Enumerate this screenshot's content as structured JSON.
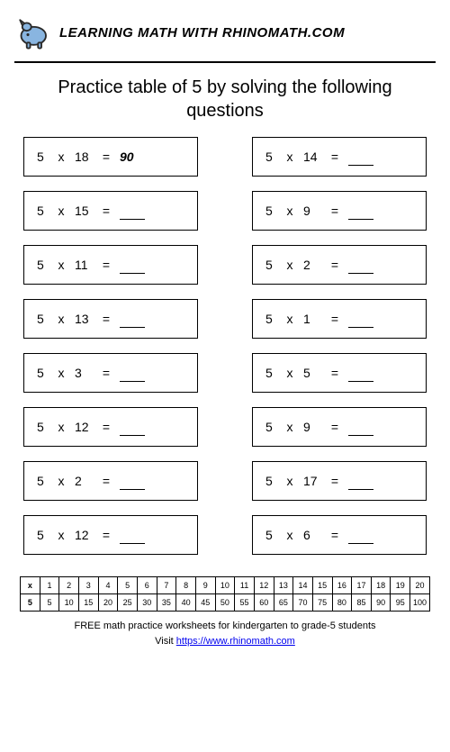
{
  "header": {
    "site_title": "LEARNING MATH WITH RHINOMATH.COM",
    "logo_colors": {
      "body": "#89b5e0",
      "outline": "#2a2a2a",
      "horn": "#d9d9d9"
    }
  },
  "instruction": "Practice table of 5 by solving the following questions",
  "base": 5,
  "op_symbol": "x",
  "eq_symbol": "=",
  "questions": {
    "left": [
      {
        "n2": 18,
        "answer": 90
      },
      {
        "n2": 15,
        "answer": null
      },
      {
        "n2": 11,
        "answer": null
      },
      {
        "n2": 13,
        "answer": null
      },
      {
        "n2": 3,
        "answer": null
      },
      {
        "n2": 12,
        "answer": null
      },
      {
        "n2": 2,
        "answer": null
      },
      {
        "n2": 12,
        "answer": null
      }
    ],
    "right": [
      {
        "n2": 14,
        "answer": null
      },
      {
        "n2": 9,
        "answer": null
      },
      {
        "n2": 2,
        "answer": null
      },
      {
        "n2": 1,
        "answer": null
      },
      {
        "n2": 5,
        "answer": null
      },
      {
        "n2": 9,
        "answer": null
      },
      {
        "n2": 17,
        "answer": null
      },
      {
        "n2": 6,
        "answer": null
      }
    ]
  },
  "answer_key": {
    "header_symbol": "x",
    "multipliers": [
      1,
      2,
      3,
      4,
      5,
      6,
      7,
      8,
      9,
      10,
      11,
      12,
      13,
      14,
      15,
      16,
      17,
      18,
      19,
      20
    ],
    "row_label": 5,
    "products": [
      5,
      10,
      15,
      20,
      25,
      30,
      35,
      40,
      45,
      50,
      55,
      60,
      65,
      70,
      75,
      80,
      85,
      90,
      95,
      100
    ]
  },
  "footer": {
    "line1": "FREE math practice worksheets for kindergarten to grade-5 students",
    "line2_prefix": "Visit ",
    "link_text": "https://www.rhinomath.com",
    "link_href": "https://www.rhinomath.com"
  },
  "style": {
    "page_bg": "#ffffff",
    "border_color": "#000000",
    "text_color": "#000000",
    "instruction_fontsize": 20,
    "question_fontsize": 14,
    "table_fontsize": 9,
    "footer_fontsize": 11
  }
}
